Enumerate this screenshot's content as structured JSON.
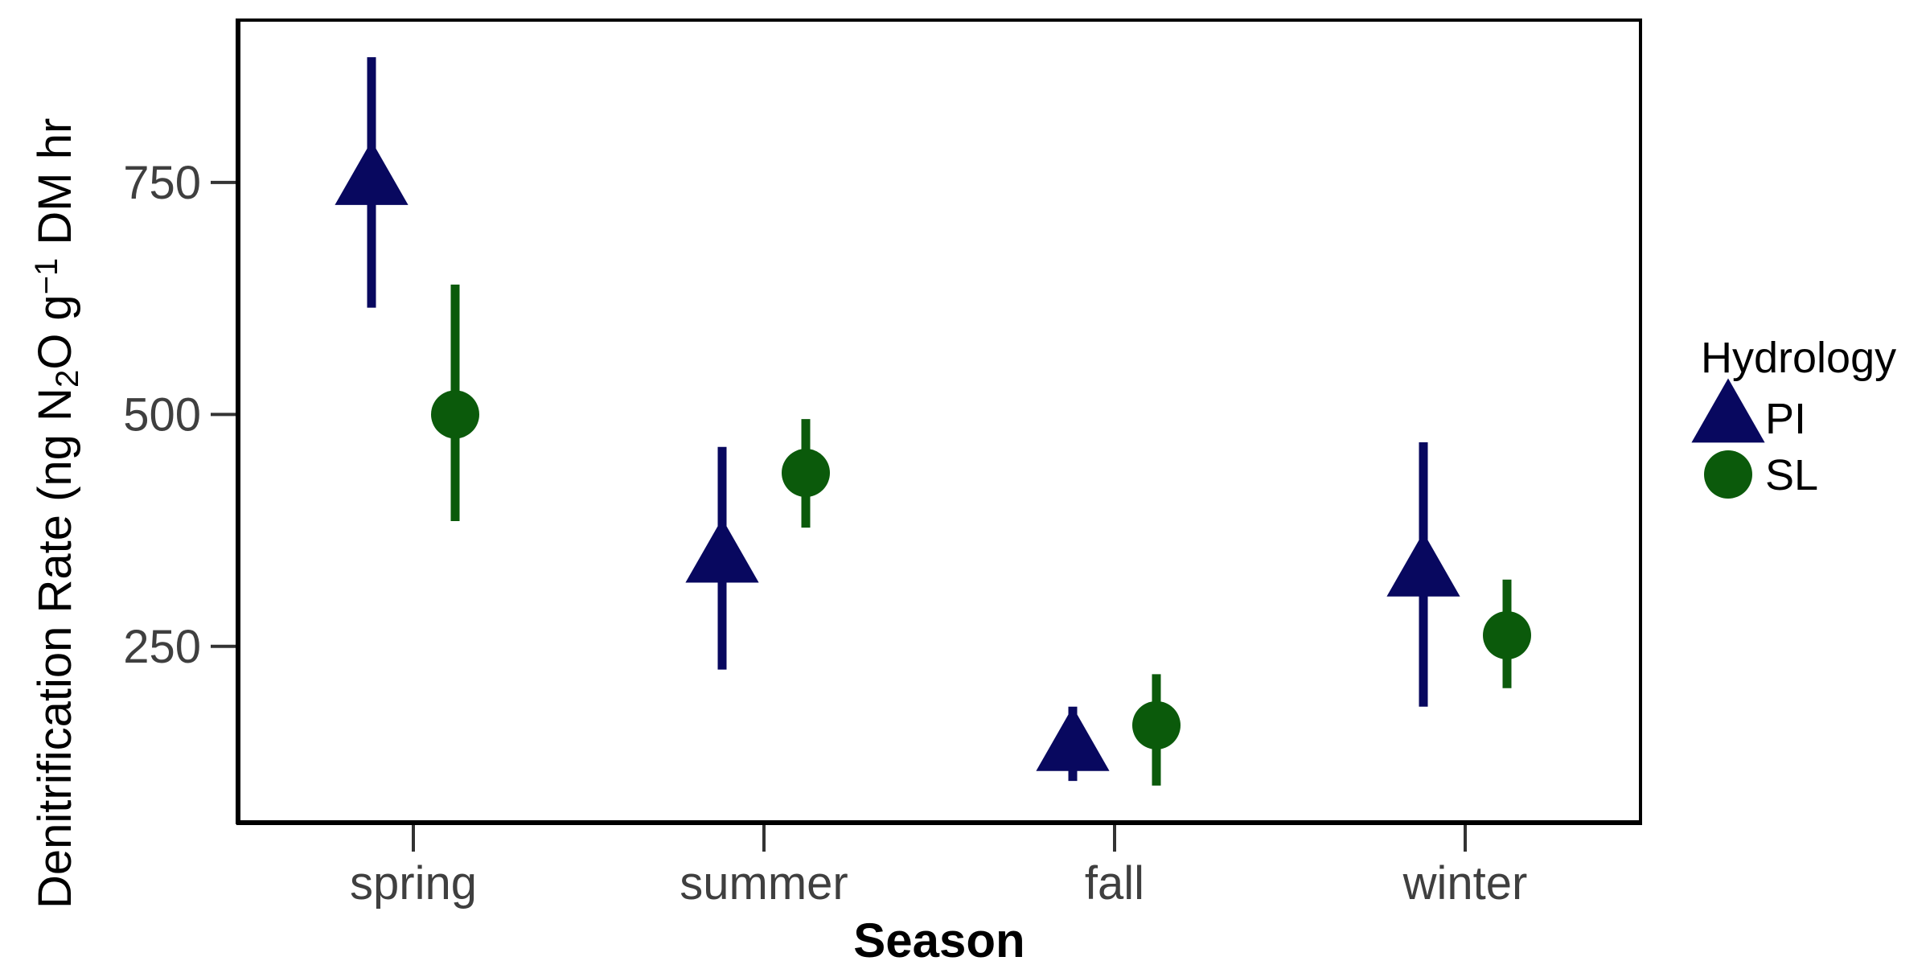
{
  "chart_data": {
    "type": "scatter",
    "subtype": "point-with-error-bars",
    "xlabel": "Season",
    "ylabel": {
      "prefix": "Denitrification Rate (ng N",
      "sub": "2",
      "mid": "O g",
      "sup": "−1",
      "suffix": " DM hr"
    },
    "categories": [
      "spring",
      "summer",
      "fall",
      "winter"
    ],
    "yticks": [
      250,
      500,
      750
    ],
    "ylim": [
      60,
      925
    ],
    "grid": false,
    "legend": {
      "title": "Hydrology",
      "placement": "right"
    },
    "series": [
      {
        "name": "PI",
        "marker": "triangle",
        "color": "#08085f",
        "values": [
          752,
          345,
          142,
          330
        ],
        "lower": [
          615,
          225,
          105,
          185
        ],
        "upper": [
          885,
          465,
          185,
          470
        ]
      },
      {
        "name": "SL",
        "marker": "circle",
        "color": "#0b5a0b",
        "values": [
          500,
          437,
          165,
          262
        ],
        "lower": [
          385,
          378,
          100,
          205
        ],
        "upper": [
          640,
          495,
          220,
          322
        ]
      }
    ]
  }
}
